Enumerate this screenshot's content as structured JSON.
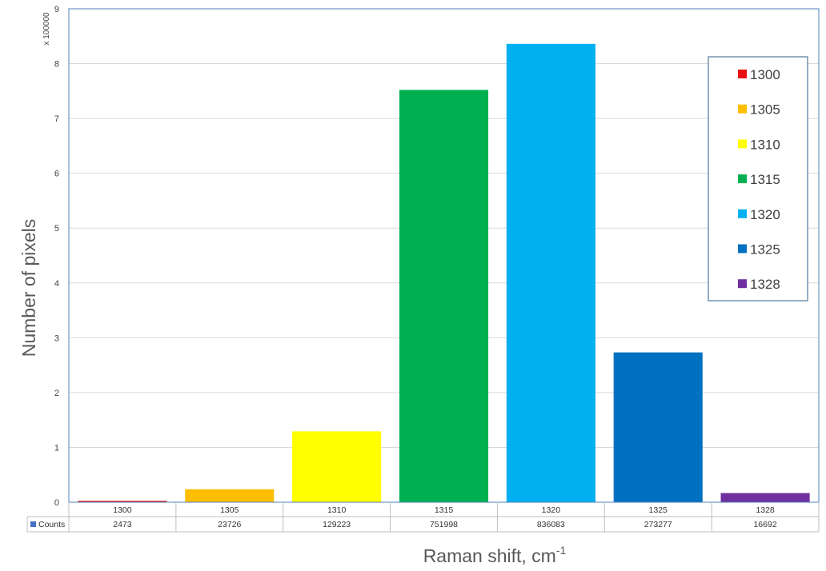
{
  "chart_data": {
    "type": "bar",
    "title": "",
    "xlabel": "Raman shift, cm",
    "xlabel_superscript": "-1",
    "ylabel": "Number of pixels",
    "y_unit_label": "x 100000",
    "y_display_multiplier": 100000,
    "ylim": [
      0,
      9
    ],
    "y_ticks": [
      0,
      1,
      2,
      3,
      4,
      5,
      6,
      7,
      8,
      9
    ],
    "grid": true,
    "legend_position": "right",
    "categories": [
      "1300",
      "1305",
      "1310",
      "1315",
      "1320",
      "1325",
      "1328"
    ],
    "series": [
      {
        "name": "Counts",
        "values": [
          2473,
          23726,
          129223,
          751998,
          836083,
          273277,
          16692
        ],
        "colors": [
          "#e81010",
          "#ffbe00",
          "#ffff00",
          "#00b050",
          "#00b0f0",
          "#0070c0",
          "#7030a0"
        ],
        "table_key_color": "#4472c4"
      }
    ],
    "legend_entries": [
      "1300",
      "1305",
      "1310",
      "1315",
      "1320",
      "1325",
      "1328"
    ],
    "data_table": true
  }
}
